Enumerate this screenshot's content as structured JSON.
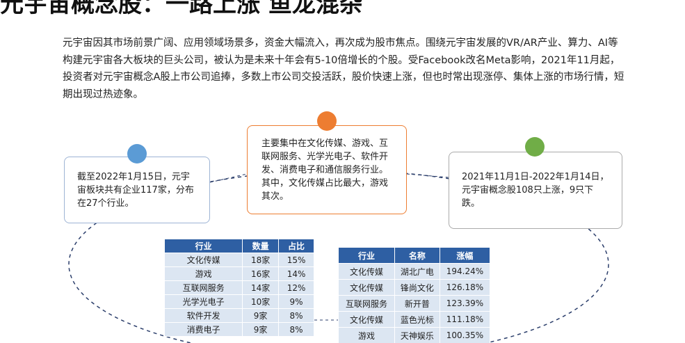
{
  "header": {
    "title": "元宇宙概念股：一路上涨 鱼龙混杂"
  },
  "intro": "元宇宙因其市场前景广阔、应用领域场景多，资金大幅流入，再次成为股市焦点。围绕元宇宙发展的VR/AR产业、算力、AI等构建元宇宙各大板块的巨头公司，被认为是未来十年会有5-10倍增长的个股。受Facebook改名Meta影响，2021年11月起，投资者对元宇宙概念A股上市公司追捧，多数上市公司交投活跃，股价快速上涨，但也时常出现涨停、集体上涨的市场行情，短期出现过热迹象。",
  "cards": [
    {
      "text": "截至2022年1月15日，元宇宙板块共有企业117家，分布在27个行业。"
    },
    {
      "text": "主要集中在文化传媒、游戏、互联网服务、光学光电子、软件开发、消费电子和通信服务行业。其中，文化传媒占比最大，游戏其次。"
    },
    {
      "text": "2021年11月1日-2022年1月14日，元宇宙概念股108只上涨，9只下跌。"
    }
  ],
  "industry_table": {
    "header": [
      "行业",
      "数量",
      "占比"
    ],
    "rows": [
      [
        "文化传媒",
        "18家",
        "15%"
      ],
      [
        "游戏",
        "16家",
        "14%"
      ],
      [
        "互联网服务",
        "14家",
        "12%"
      ],
      [
        "光学光电子",
        "10家",
        "9%"
      ],
      [
        "软件开发",
        "9家",
        "8%"
      ],
      [
        "消费电子",
        "9家",
        "8%"
      ]
    ]
  },
  "gainers_table": {
    "header": [
      "行业",
      "名称",
      "涨幅"
    ],
    "rows": [
      [
        "文化传媒",
        "湖北广电",
        "194.24%"
      ],
      [
        "文化传媒",
        "锋尚文化",
        "126.18%"
      ],
      [
        "互联网服务",
        "新开普",
        "123.39%"
      ],
      [
        "文化传媒",
        "蓝色光标",
        "111.18%"
      ],
      [
        "游戏",
        "天神娱乐",
        "100.35%"
      ]
    ]
  }
}
